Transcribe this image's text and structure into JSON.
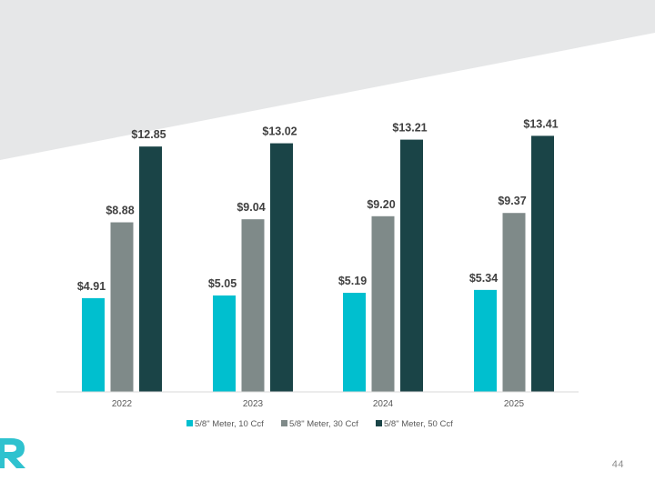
{
  "slide": {
    "page_number": "44",
    "banner_color": "#e6e7e8",
    "logo_color": "#2fc2cf"
  },
  "chart_data": {
    "type": "bar",
    "categories": [
      "2022",
      "2023",
      "2024",
      "2025"
    ],
    "series": [
      {
        "name": "5/8\" Meter, 10 Ccf",
        "color": "#00bfcf",
        "values": [
          4.91,
          5.05,
          5.19,
          5.34
        ],
        "labels": [
          "$4.91",
          "$5.05",
          "$5.19",
          "$5.34"
        ]
      },
      {
        "name": "5/8\" Meter, 30 Ccf",
        "color": "#7f8a89",
        "values": [
          8.88,
          9.04,
          9.2,
          9.37
        ],
        "labels": [
          "$8.88",
          "$9.04",
          "$9.20",
          "$9.37"
        ]
      },
      {
        "name": "5/8\" Meter, 50 Ccf",
        "color": "#1a4447",
        "values": [
          12.85,
          13.02,
          13.21,
          13.41
        ],
        "labels": [
          "$12.85",
          "$13.02",
          "$13.21",
          "$13.41"
        ]
      }
    ],
    "title": "",
    "xlabel": "",
    "ylabel": "",
    "ylim": [
      0,
      16
    ],
    "legend_position": "bottom",
    "grid": false
  }
}
